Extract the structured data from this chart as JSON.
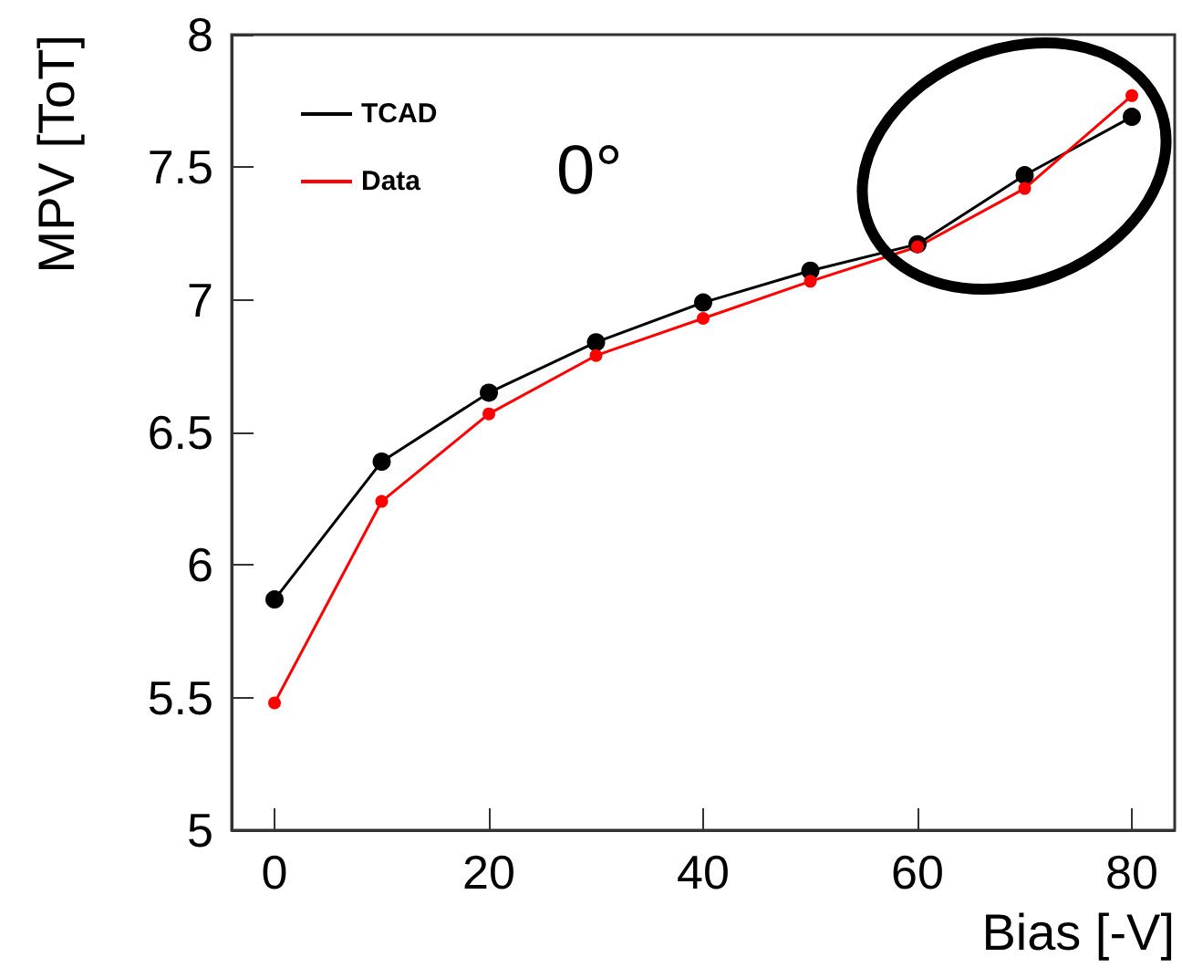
{
  "chart_data": {
    "type": "line",
    "xlabel": "Bias [-V]",
    "ylabel": "MPV [ToT]",
    "annotations": [
      "0°"
    ],
    "x": [
      0,
      10,
      20,
      30,
      40,
      50,
      60,
      70,
      80
    ],
    "series": [
      {
        "name": "TCAD",
        "color": "#000000",
        "values": [
          5.87,
          6.39,
          6.65,
          6.84,
          6.99,
          7.11,
          7.21,
          7.47,
          7.69
        ]
      },
      {
        "name": "Data",
        "color": "#ff0000",
        "values": [
          5.48,
          6.24,
          6.57,
          6.79,
          6.93,
          7.07,
          7.2,
          7.42,
          7.77
        ]
      }
    ],
    "xlim": [
      -4,
      84
    ],
    "xticks": [
      0,
      20,
      40,
      60,
      80
    ],
    "ylim": [
      5,
      8
    ],
    "yticks": [
      5,
      5.5,
      6,
      6.5,
      7,
      7.5,
      8
    ],
    "legend": "top left",
    "marker": "circle",
    "line_style": "solid",
    "grid": false
  }
}
